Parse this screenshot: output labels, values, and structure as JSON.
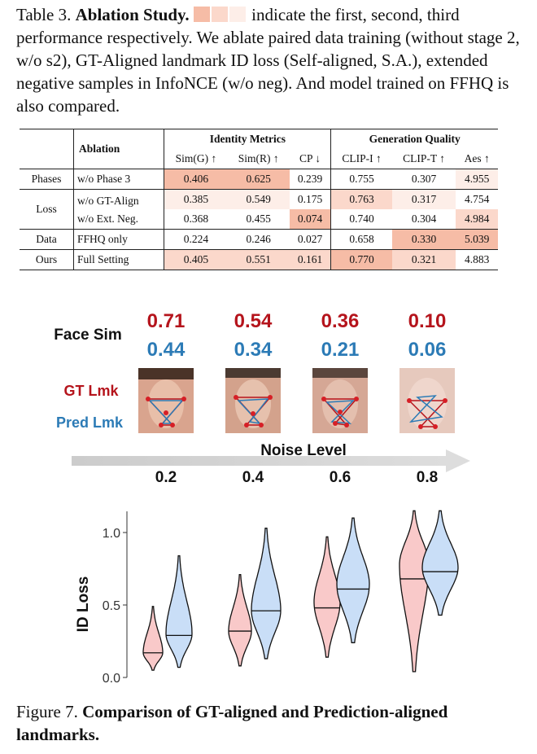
{
  "table_caption": {
    "label": "Table 3.",
    "title": "Ablation Study",
    "lead": ".",
    "swatch_colors": [
      "#f6bca6",
      "#fbd8cb",
      "#fdeee8"
    ],
    "text": " indicate the first, second, third performance respectively. We ablate paired data training (without stage 2, w/o s2), GT-Aligned landmark ID loss (Self-aligned, S.A.), extended negative samples in InfoNCE (w/o neg).  And model trained on FFHQ is also compared."
  },
  "table": {
    "ablation_header": "Ablation",
    "group_identity": "Identity Metrics",
    "group_generation": "Generation Quality",
    "columns": [
      "Sim(G) ↑",
      "Sim(R) ↑",
      "CP ↓",
      "CLIP-I ↑",
      "CLIP-T ↑",
      "Aes ↑"
    ],
    "rows": [
      {
        "group": "Phases",
        "name": "w/o Phase 3",
        "values": [
          "0.406",
          "0.625",
          "0.239",
          "0.755",
          "0.307",
          "4.955"
        ]
      },
      {
        "group": "Loss",
        "name": "w/o GT-Align",
        "values": [
          "0.385",
          "0.549",
          "0.175",
          "0.763",
          "0.317",
          "4.754"
        ]
      },
      {
        "group": "",
        "name": "w/o Ext. Neg.",
        "values": [
          "0.368",
          "0.455",
          "0.074",
          "0.740",
          "0.304",
          "4.984"
        ]
      },
      {
        "group": "Data",
        "name": "FFHQ only",
        "values": [
          "0.224",
          "0.246",
          "0.027",
          "0.658",
          "0.330",
          "5.039"
        ]
      },
      {
        "group": "Ours",
        "name": "Full Setting",
        "values": [
          "0.405",
          "0.551",
          "0.161",
          "0.770",
          "0.321",
          "4.883"
        ]
      }
    ]
  },
  "figure": {
    "face_sim_label": "Face Sim",
    "gt_label": "GT Lmk",
    "pred_label": "Pred Lmk",
    "noise_label": "Noise Level",
    "gt_color": "#b5141c",
    "pred_color": "#2c7bb6",
    "columns": [
      {
        "gt": "0.71",
        "pred": "0.44",
        "noise": "0.2"
      },
      {
        "gt": "0.54",
        "pred": "0.34",
        "noise": "0.4"
      },
      {
        "gt": "0.36",
        "pred": "0.21",
        "noise": "0.6"
      },
      {
        "gt": "0.10",
        "pred": "0.06",
        "noise": "0.8"
      }
    ]
  },
  "chart_data": {
    "type": "violin",
    "ylabel": "ID Loss",
    "yticks": [
      "0.0",
      "0.5",
      "1.0"
    ],
    "ylim": [
      0.0,
      1.15
    ],
    "groups": [
      "0.2",
      "0.4",
      "0.6",
      "0.8"
    ],
    "series": [
      {
        "name": "GT-aligned",
        "color": "#f9c9c9",
        "medians": [
          0.17,
          0.32,
          0.48,
          0.68
        ],
        "mins": [
          0.05,
          0.08,
          0.14,
          0.04
        ],
        "maxs": [
          0.49,
          0.71,
          0.97,
          1.15
        ],
        "modes": [
          0.17,
          0.32,
          0.52,
          0.78
        ]
      },
      {
        "name": "Pred-aligned",
        "color": "#c9def7",
        "medians": [
          0.29,
          0.46,
          0.61,
          0.73
        ],
        "mins": [
          0.07,
          0.13,
          0.24,
          0.43
        ],
        "maxs": [
          0.84,
          1.03,
          1.1,
          1.15
        ],
        "modes": [
          0.3,
          0.46,
          0.64,
          0.76
        ]
      }
    ]
  },
  "figure_caption": {
    "label": "Figure 7.",
    "title": "Comparison of GT-aligned and Prediction-aligned landmarks."
  }
}
